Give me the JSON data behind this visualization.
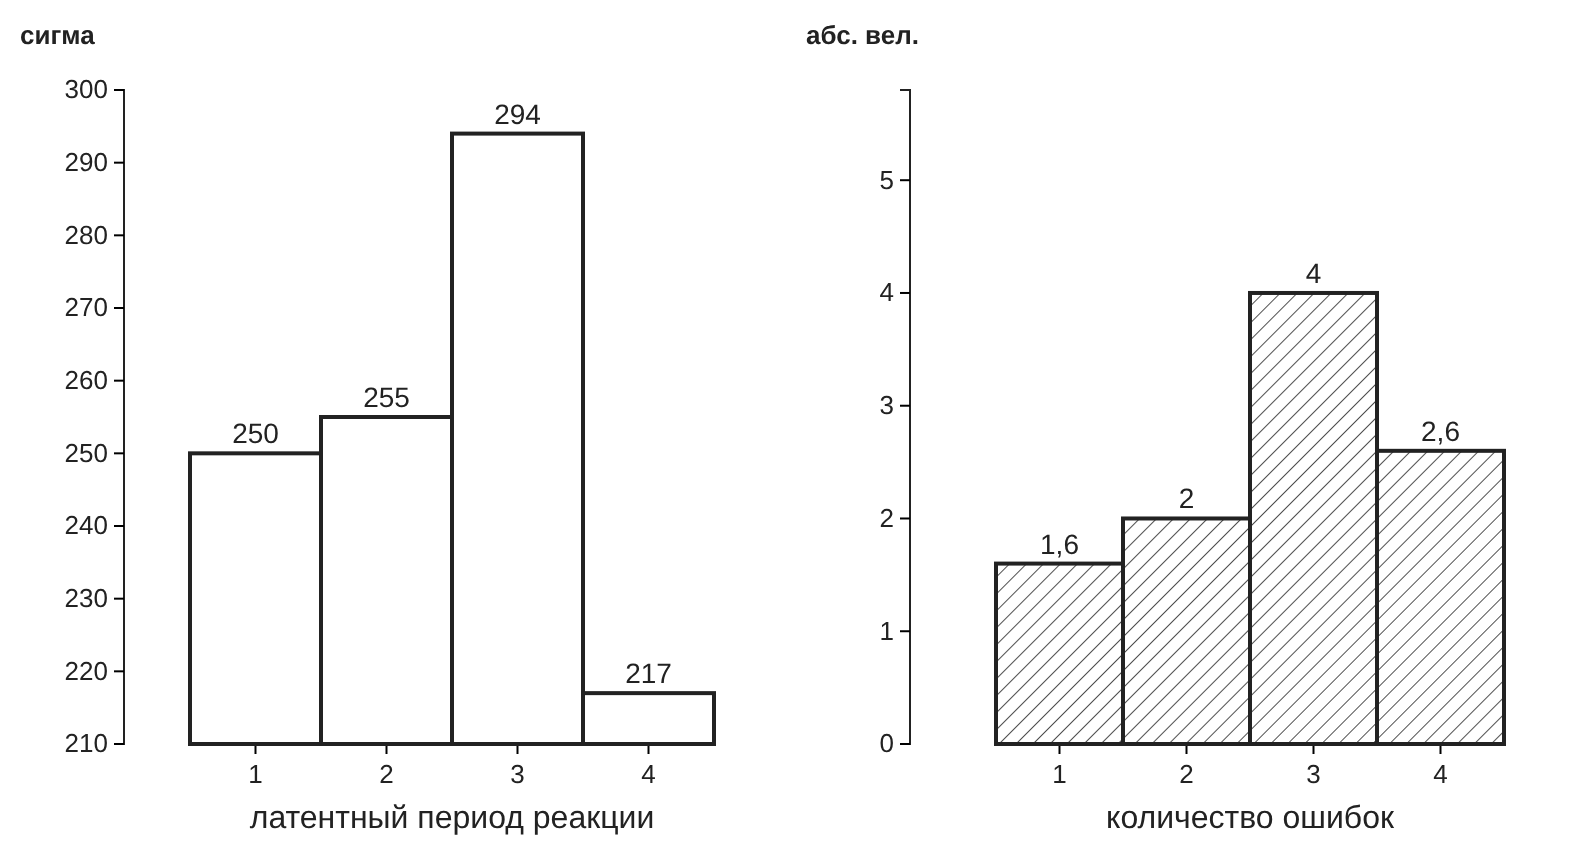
{
  "chart_data": [
    {
      "type": "bar",
      "ylabel": "сигма",
      "xlabel": "латентный период реакции",
      "categories": [
        "1",
        "2",
        "3",
        "4"
      ],
      "values": [
        250,
        255,
        294,
        217
      ],
      "color": "#ffffff",
      "ylim": [
        210,
        300
      ],
      "yticks": [
        210,
        220,
        230,
        240,
        250,
        260,
        270,
        280,
        290,
        300
      ],
      "data_labels": true
    },
    {
      "type": "bar",
      "ylabel": "абс. вел.",
      "xlabel": "количество ошибок",
      "categories": [
        "1",
        "2",
        "3",
        "4"
      ],
      "values": [
        1.6,
        2,
        4,
        2.6
      ],
      "value_labels": [
        "1,6",
        "2",
        "4",
        "2,6"
      ],
      "color": "#222222",
      "ylim": [
        0,
        5.8
      ],
      "yticks": [
        0,
        1,
        2,
        3,
        4,
        5
      ]
    }
  ]
}
